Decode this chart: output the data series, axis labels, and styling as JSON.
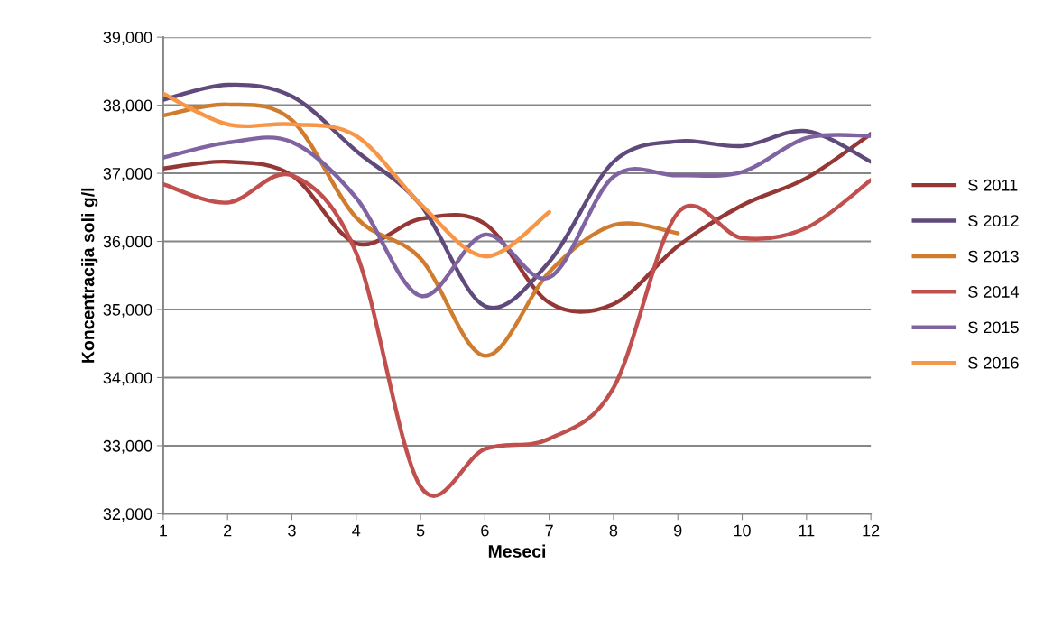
{
  "chart_data": {
    "type": "line",
    "xlabel": "Meseci",
    "ylabel": "Koncentracija soli g/l",
    "x": [
      1,
      2,
      3,
      4,
      5,
      6,
      7,
      8,
      9,
      10,
      11,
      12
    ],
    "series": [
      {
        "name": "S 2011",
        "color": "#953735",
        "values": [
          37070,
          37170,
          36970,
          35970,
          36330,
          36260,
          35100,
          35080,
          35930,
          36530,
          36930,
          37580
        ]
      },
      {
        "name": "S 2012",
        "color": "#604a7b",
        "values": [
          38080,
          38300,
          38130,
          37330,
          36540,
          35050,
          35700,
          37170,
          37470,
          37400,
          37620,
          37170
        ]
      },
      {
        "name": "S 2013",
        "color": "#d07c2e",
        "values": [
          37850,
          38010,
          37780,
          36350,
          35750,
          34320,
          35550,
          36240,
          36120,
          null,
          null,
          null
        ]
      },
      {
        "name": "S 2014",
        "color": "#c0504d",
        "values": [
          36840,
          36570,
          36970,
          35830,
          32400,
          32950,
          33100,
          33850,
          36420,
          36050,
          36200,
          36900
        ]
      },
      {
        "name": "S 2015",
        "color": "#8064a2",
        "values": [
          37230,
          37450,
          37460,
          36640,
          35200,
          36100,
          35470,
          36950,
          36970,
          37020,
          37520,
          37550
        ]
      },
      {
        "name": "S 2016",
        "color": "#f79646",
        "values": [
          38170,
          37720,
          37720,
          37550,
          36550,
          35780,
          36430,
          null,
          null,
          null,
          null,
          null
        ]
      }
    ],
    "xlim": [
      1,
      12
    ],
    "xticks": [
      1,
      2,
      3,
      4,
      5,
      6,
      7,
      8,
      9,
      10,
      11,
      12
    ],
    "ylim": [
      32000,
      39000
    ],
    "yticks": [
      {
        "value": 32000,
        "label": "32,000"
      },
      {
        "value": 33000,
        "label": "33,000"
      },
      {
        "value": 34000,
        "label": "34,000"
      },
      {
        "value": 35000,
        "label": "35,000"
      },
      {
        "value": 36000,
        "label": "36,000"
      },
      {
        "value": 37000,
        "label": "37,000"
      },
      {
        "value": 38000,
        "label": "38,000"
      },
      {
        "value": 39000,
        "label": "39,000"
      }
    ],
    "grid": "y",
    "legend": "right",
    "line_style": "solid",
    "marker": "none"
  }
}
